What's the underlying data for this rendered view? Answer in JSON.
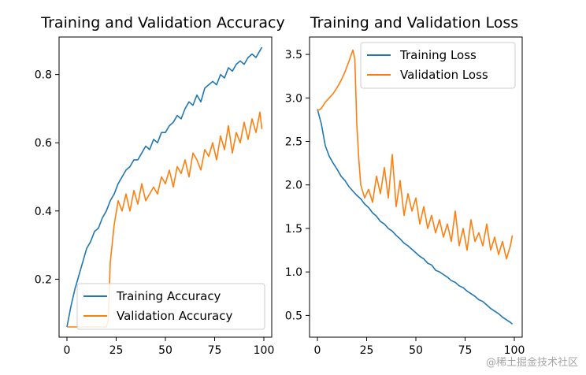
{
  "chart_data": [
    {
      "type": "line",
      "title": "Training and Validation Accuracy",
      "xlabel": "",
      "ylabel": "",
      "xlim": [
        -4,
        104
      ],
      "ylim": [
        0.03,
        0.91
      ],
      "xticks": [
        0,
        25,
        50,
        75,
        100
      ],
      "yticks": [
        0.2,
        0.4,
        0.6,
        0.8
      ],
      "xtick_labels": [
        "0",
        "25",
        "50",
        "75",
        "100"
      ],
      "ytick_labels": [
        "0.2",
        "0.4",
        "0.6",
        "0.8"
      ],
      "grid": false,
      "legend_position": "lower-right",
      "series": [
        {
          "name": "Training Accuracy",
          "color": "#1f77b4",
          "x": [
            0,
            2,
            4,
            6,
            8,
            10,
            12,
            14,
            16,
            18,
            20,
            22,
            24,
            26,
            28,
            30,
            32,
            34,
            36,
            38,
            40,
            42,
            44,
            46,
            48,
            50,
            52,
            54,
            56,
            58,
            60,
            62,
            64,
            66,
            68,
            70,
            72,
            74,
            76,
            78,
            80,
            82,
            84,
            86,
            88,
            90,
            92,
            94,
            96,
            98,
            99
          ],
          "y": [
            0.06,
            0.12,
            0.17,
            0.21,
            0.25,
            0.29,
            0.31,
            0.34,
            0.35,
            0.38,
            0.4,
            0.43,
            0.45,
            0.48,
            0.5,
            0.52,
            0.53,
            0.55,
            0.55,
            0.57,
            0.59,
            0.58,
            0.61,
            0.6,
            0.63,
            0.63,
            0.65,
            0.66,
            0.68,
            0.67,
            0.7,
            0.72,
            0.71,
            0.74,
            0.72,
            0.76,
            0.77,
            0.78,
            0.77,
            0.8,
            0.79,
            0.82,
            0.81,
            0.83,
            0.84,
            0.83,
            0.85,
            0.86,
            0.85,
            0.87,
            0.88
          ]
        },
        {
          "name": "Validation Accuracy",
          "color": "#ff7f0e",
          "x": [
            0,
            2,
            4,
            6,
            8,
            10,
            12,
            14,
            16,
            18,
            20,
            21,
            22,
            24,
            26,
            28,
            30,
            32,
            34,
            36,
            38,
            40,
            42,
            44,
            46,
            48,
            50,
            52,
            54,
            56,
            58,
            60,
            62,
            64,
            66,
            68,
            70,
            72,
            74,
            76,
            78,
            80,
            82,
            84,
            86,
            88,
            90,
            92,
            94,
            96,
            98,
            99
          ],
          "y": [
            0.06,
            0.06,
            0.06,
            0.06,
            0.06,
            0.06,
            0.06,
            0.06,
            0.06,
            0.06,
            0.06,
            0.08,
            0.25,
            0.36,
            0.43,
            0.4,
            0.45,
            0.4,
            0.46,
            0.42,
            0.48,
            0.43,
            0.45,
            0.47,
            0.45,
            0.5,
            0.48,
            0.52,
            0.47,
            0.53,
            0.51,
            0.55,
            0.5,
            0.57,
            0.55,
            0.52,
            0.58,
            0.56,
            0.6,
            0.55,
            0.62,
            0.58,
            0.65,
            0.57,
            0.63,
            0.6,
            0.66,
            0.61,
            0.67,
            0.63,
            0.69,
            0.64
          ]
        }
      ]
    },
    {
      "type": "line",
      "title": "Training and Validation Loss",
      "xlabel": "",
      "ylabel": "",
      "xlim": [
        -4,
        104
      ],
      "ylim": [
        0.25,
        3.7
      ],
      "xticks": [
        0,
        25,
        50,
        75,
        100
      ],
      "yticks": [
        0.5,
        1.0,
        1.5,
        2.0,
        2.5,
        3.0,
        3.5
      ],
      "xtick_labels": [
        "0",
        "25",
        "50",
        "75",
        "100"
      ],
      "ytick_labels": [
        "0.5",
        "1.0",
        "1.5",
        "2.0",
        "2.5",
        "3.0",
        "3.5"
      ],
      "grid": false,
      "legend_position": "upper-right",
      "series": [
        {
          "name": "Training Loss",
          "color": "#1f77b4",
          "x": [
            0,
            2,
            4,
            6,
            8,
            10,
            12,
            14,
            16,
            18,
            20,
            22,
            24,
            26,
            28,
            30,
            32,
            34,
            36,
            38,
            40,
            42,
            44,
            46,
            48,
            50,
            52,
            54,
            56,
            58,
            60,
            62,
            64,
            66,
            68,
            70,
            72,
            74,
            76,
            78,
            80,
            82,
            84,
            86,
            88,
            90,
            92,
            94,
            96,
            98,
            99
          ],
          "y": [
            2.87,
            2.7,
            2.45,
            2.33,
            2.25,
            2.18,
            2.1,
            2.05,
            1.98,
            1.93,
            1.88,
            1.84,
            1.78,
            1.74,
            1.68,
            1.64,
            1.58,
            1.55,
            1.5,
            1.47,
            1.42,
            1.38,
            1.33,
            1.3,
            1.26,
            1.22,
            1.18,
            1.15,
            1.1,
            1.08,
            1.02,
            1.0,
            0.97,
            0.94,
            0.9,
            0.88,
            0.84,
            0.82,
            0.78,
            0.75,
            0.72,
            0.68,
            0.66,
            0.62,
            0.58,
            0.55,
            0.52,
            0.48,
            0.45,
            0.42,
            0.4
          ]
        },
        {
          "name": "Validation Loss",
          "color": "#ff7f0e",
          "x": [
            0,
            2,
            4,
            6,
            8,
            10,
            12,
            14,
            16,
            18,
            19,
            20,
            21,
            22,
            24,
            26,
            28,
            30,
            32,
            34,
            36,
            38,
            40,
            42,
            44,
            46,
            48,
            50,
            52,
            54,
            56,
            58,
            60,
            62,
            64,
            66,
            68,
            70,
            72,
            74,
            76,
            78,
            80,
            82,
            84,
            86,
            88,
            90,
            92,
            94,
            96,
            98,
            99
          ],
          "y": [
            2.85,
            2.88,
            2.95,
            3.0,
            3.05,
            3.12,
            3.2,
            3.3,
            3.42,
            3.55,
            3.45,
            2.7,
            2.3,
            2.0,
            1.85,
            1.95,
            1.8,
            2.1,
            1.9,
            2.2,
            1.85,
            2.35,
            1.75,
            2.05,
            1.65,
            1.9,
            1.7,
            1.85,
            1.55,
            1.75,
            1.5,
            1.65,
            1.45,
            1.6,
            1.4,
            1.55,
            1.35,
            1.7,
            1.3,
            1.5,
            1.25,
            1.6,
            1.35,
            1.45,
            1.3,
            1.55,
            1.25,
            1.4,
            1.2,
            1.35,
            1.15,
            1.3,
            1.42
          ]
        }
      ]
    }
  ],
  "watermark": "@稀土掘金技术社区"
}
